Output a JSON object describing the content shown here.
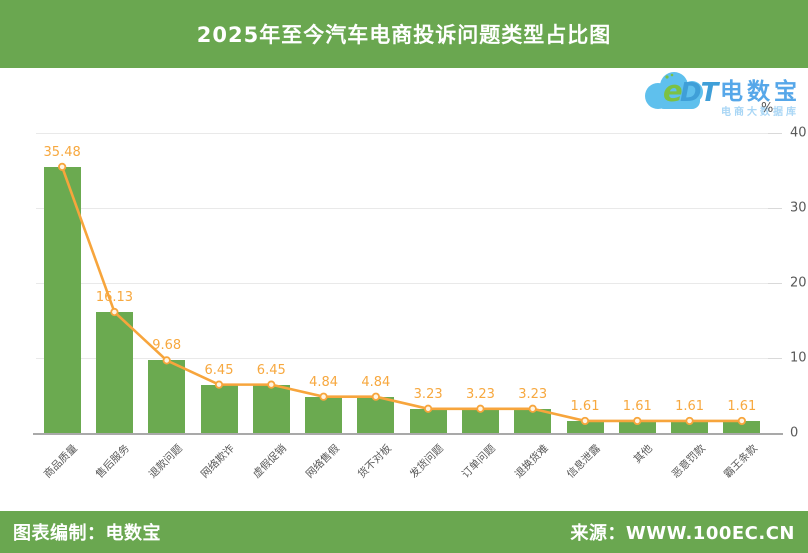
{
  "header": {
    "title": "2025年至今汽车电商投诉问题类型占比图"
  },
  "logo": {
    "icon": "cloud-icon",
    "mark_e": "e",
    "mark_dt": "DT",
    "brand": "电数宝",
    "tagline": "电商大数据库",
    "cloud_color": "#5fc0ed",
    "brand_color": "#56a7e9"
  },
  "chart_data": {
    "type": "bar",
    "title": "2025年至今汽车电商投诉问题类型占比图",
    "categories": [
      "商品质量",
      "售后服务",
      "退款问题",
      "网络欺诈",
      "虚假促销",
      "网络售假",
      "货不对板",
      "发货问题",
      "订单问题",
      "退换货难",
      "信息泄露",
      "其他",
      "恶意罚款",
      "霸王条款"
    ],
    "values": [
      35.48,
      16.13,
      9.68,
      6.45,
      6.45,
      4.84,
      4.84,
      3.23,
      3.23,
      3.23,
      1.61,
      1.61,
      1.61,
      1.61
    ],
    "series": [
      {
        "name": "bar-percentage",
        "type": "bar",
        "values": [
          35.48,
          16.13,
          9.68,
          6.45,
          6.45,
          4.84,
          4.84,
          3.23,
          3.23,
          3.23,
          1.61,
          1.61,
          1.61,
          1.61
        ]
      },
      {
        "name": "trend-line",
        "type": "line",
        "values": [
          35.48,
          16.13,
          9.68,
          6.45,
          6.45,
          4.84,
          4.84,
          3.23,
          3.23,
          3.23,
          1.61,
          1.61,
          1.61,
          1.61
        ]
      }
    ],
    "xlabel": "",
    "ylabel": "%",
    "ylim": [
      0,
      40
    ],
    "yticks": [
      0,
      10,
      20,
      30,
      40
    ],
    "y_axis_side": "right",
    "grid": "horizontal",
    "legend_position": "none",
    "data_labels_shown": true,
    "bar_color": "#6baa50",
    "line_color": "#f7a53c",
    "label_color": "#f7a83f",
    "axis_text_color": "#595959"
  },
  "footer": {
    "credit": "图表编制：电数宝",
    "source": "来源：WWW.100EC.CN"
  },
  "theme": {
    "band_green": "#6aa750",
    "grid_color": "#e9e9e9",
    "axis_line_color": "#a9a9a9"
  }
}
